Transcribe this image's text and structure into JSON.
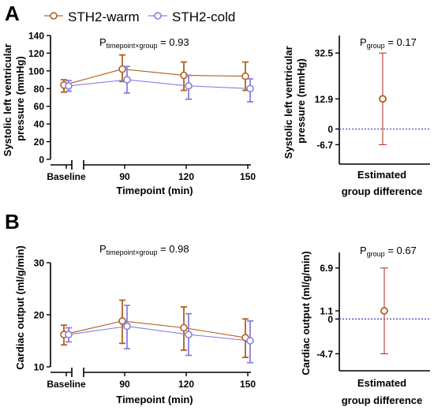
{
  "panels": [
    {
      "letter": "A",
      "legend": [
        {
          "label": "STH2-warm",
          "color": "#b0601c"
        },
        {
          "label": "STH2-cold",
          "color": "#8a7ee0"
        }
      ],
      "p_label": {
        "prefix": "P",
        "sub": "timepoint×group",
        "value": " = 0.93"
      },
      "group_p": {
        "prefix": "P",
        "sub": "group",
        "value": " = 0.17"
      },
      "ylabel_main": [
        "Systolic left ventricular",
        "pressure (mmHg)"
      ],
      "ylabel_diff": [
        "Systolic left ventricular",
        "pressure (mmHg)"
      ],
      "xlabel": "Timepoint (min)",
      "diff_xlabel": [
        "Estimated",
        "group difference"
      ]
    },
    {
      "letter": "B",
      "p_label": {
        "prefix": "P",
        "sub": "timepoint×group",
        "value": " = 0.98"
      },
      "group_p": {
        "prefix": "P",
        "sub": "group",
        "value": " = 0.67"
      },
      "ylabel_main": [
        "Cardiac output (ml/g/min)"
      ],
      "ylabel_diff": [
        "Cardiac output (ml/g/min)"
      ],
      "xlabel": "Timepoint (min)",
      "diff_xlabel": [
        "Estimated",
        "group difference"
      ]
    }
  ],
  "chart_data": [
    {
      "type": "line",
      "panel": "A",
      "categories": [
        "Baseline",
        "90",
        "120",
        "150"
      ],
      "ylim": [
        0,
        140
      ],
      "yticks": [
        0,
        20,
        40,
        60,
        80,
        100,
        120,
        140
      ],
      "ylabel": "Systolic left ventricular pressure (mmHg)",
      "xlabel": "Timepoint (min)",
      "series": [
        {
          "name": "STH2-warm",
          "color": "#b0601c",
          "values": [
            84,
            102,
            95,
            94
          ],
          "err_low": [
            76,
            88,
            78,
            78
          ],
          "err_high": [
            90,
            118,
            110,
            110
          ]
        },
        {
          "name": "STH2-cold",
          "color": "#8a7ee0",
          "values": [
            83,
            90,
            83,
            80
          ],
          "err_low": [
            77,
            75,
            68,
            65
          ],
          "err_high": [
            89,
            105,
            95,
            91
          ]
        }
      ]
    },
    {
      "type": "scatter",
      "panel": "A-diff",
      "ylim": [
        -15,
        40
      ],
      "yticks": [
        -6.7,
        0,
        12.9,
        32.5
      ],
      "ytick_labels": [
        "-6.7",
        "0",
        "12.9",
        "32.5"
      ],
      "estimate": 12.9,
      "ci": [
        -6.7,
        32.5
      ],
      "ylabel": "Systolic left ventricular pressure (mmHg)",
      "xlabel": "Estimated group difference"
    },
    {
      "type": "line",
      "panel": "B",
      "categories": [
        "Baseline",
        "90",
        "120",
        "150"
      ],
      "ylim": [
        10,
        30
      ],
      "yticks": [
        10,
        20,
        30
      ],
      "ylabel": "Cardiac output (ml/g/min)",
      "xlabel": "Timepoint (min)",
      "series": [
        {
          "name": "STH2-warm",
          "color": "#b0601c",
          "values": [
            16.2,
            18.8,
            17.5,
            15.6
          ],
          "err_low": [
            14.2,
            14.5,
            13.2,
            11.8
          ],
          "err_high": [
            18.0,
            22.8,
            21.5,
            19.2
          ]
        },
        {
          "name": "STH2-cold",
          "color": "#8a7ee0",
          "values": [
            16.2,
            17.8,
            16.2,
            15.0
          ],
          "err_low": [
            14.8,
            13.5,
            12.2,
            10.8
          ],
          "err_high": [
            17.5,
            21.8,
            20.2,
            18.8
          ]
        }
      ]
    },
    {
      "type": "scatter",
      "panel": "B-diff",
      "ylim": [
        -7,
        9
      ],
      "yticks": [
        -4.7,
        0,
        1.1,
        6.9
      ],
      "ytick_labels": [
        "-4.7",
        "0",
        "1.1",
        "6.9"
      ],
      "estimate": 1.1,
      "ci": [
        -4.7,
        6.9
      ],
      "ylabel": "Cardiac output (ml/g/min)",
      "xlabel": "Estimated group difference"
    }
  ]
}
